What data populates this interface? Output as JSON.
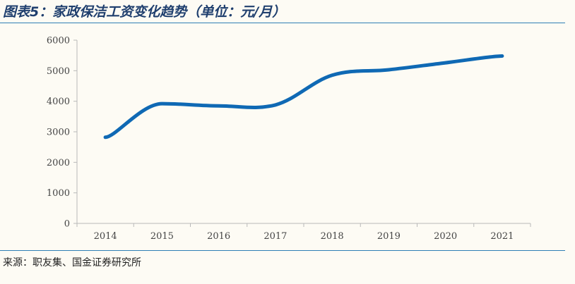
{
  "title": "图表5：家政保洁工资变化趋势（单位：元/月）",
  "source": "来源：职友集、国金证券研究所",
  "colors": {
    "line": "#0f69b4",
    "rule": "#2e7fb5",
    "title": "#1f3f6e"
  },
  "chart_data": {
    "type": "line",
    "title": "图表5：家政保洁工资变化趋势（单位：元/月）",
    "xlabel": "",
    "ylabel": "",
    "categories": [
      "2014",
      "2015",
      "2016",
      "2017",
      "2018",
      "2019",
      "2020",
      "2021"
    ],
    "series": [
      {
        "values": [
          2820,
          3920,
          3850,
          3880,
          4850,
          5030,
          5260,
          5480
        ]
      }
    ],
    "ylim": [
      0,
      6000
    ],
    "yticks": [
      "0",
      "1000",
      "2000",
      "3000",
      "4000",
      "5000",
      "6000"
    ],
    "grid": false,
    "legend": "none"
  }
}
